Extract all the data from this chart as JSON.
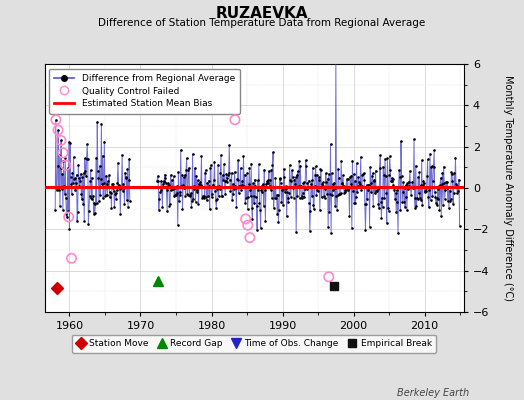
{
  "title": "RUZAEVKA",
  "subtitle": "Difference of Station Temperature Data from Regional Average",
  "ylabel": "Monthly Temperature Anomaly Difference (°C)",
  "xlabel_ticks": [
    1960,
    1970,
    1980,
    1990,
    2000,
    2010
  ],
  "ylim": [
    -6,
    6
  ],
  "xlim": [
    1956.5,
    2015.5
  ],
  "yticks": [
    -6,
    -4,
    -2,
    0,
    2,
    4,
    6
  ],
  "bg_color": "#e0e0e0",
  "plot_bg_color": "#ffffff",
  "line_color": "#5555cc",
  "dot_color": "#000000",
  "bias_color": "#ff0000",
  "qc_color": "#ff88cc",
  "station_move_color": "#cc0000",
  "record_gap_color": "#008800",
  "obs_change_color": "#2222cc",
  "empirical_break_color": "#111111",
  "mean_bias_value": 0.05,
  "seed": 42,
  "station_move_x": 1958.3,
  "station_move_y": -4.85,
  "record_gap_x": 1972.5,
  "record_gap_y": -4.5,
  "empirical_break_x": 1997.2,
  "empirical_break_y": -4.75,
  "gap_start": 1968.5,
  "gap_end": 1972.3,
  "large_spike_x": 1997.5,
  "large_spike_y": 6.1,
  "large_neg_spike_x": 1996.8,
  "large_neg_spike_y": -2.2,
  "qc_failed_x": [
    1958.1,
    1958.4,
    1958.8,
    1959.1,
    1959.5,
    1959.9,
    1960.3,
    1983.3,
    1984.8,
    1985.1,
    1985.4,
    1996.5
  ],
  "qc_failed_y": [
    3.3,
    2.8,
    2.3,
    1.7,
    1.1,
    -1.4,
    -3.4,
    3.3,
    -1.5,
    -1.8,
    -2.4,
    -4.3
  ],
  "footnote": "Berkeley Earth"
}
